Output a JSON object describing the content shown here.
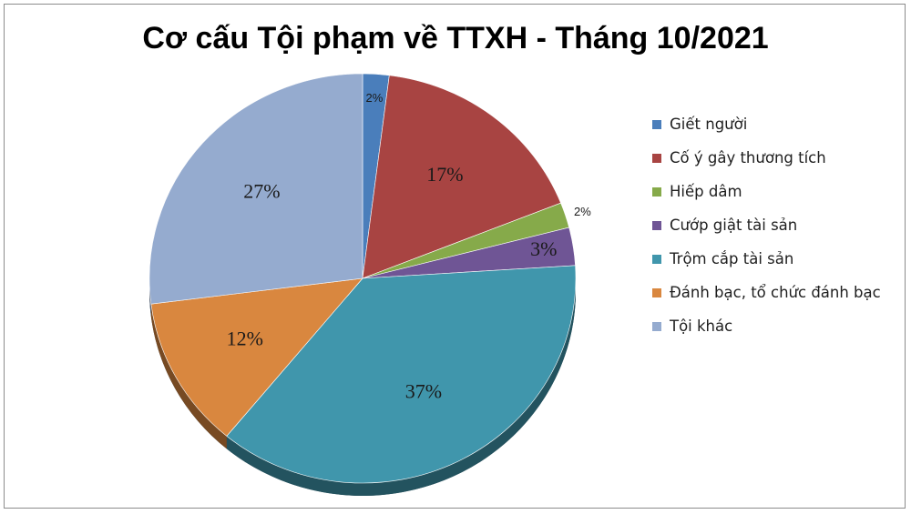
{
  "chart_data": {
    "type": "pie",
    "title": "Cơ cấu Tội phạm về TTXH - Tháng 10/2021",
    "legend_position": "right",
    "slices": [
      {
        "name": "Giết người",
        "value": 2,
        "label": "2%",
        "color": "#4a7ebb"
      },
      {
        "name": "Cố ý gây thương tích",
        "value": 17,
        "label": "17%",
        "color": "#a84442"
      },
      {
        "name": "Hiếp dâm",
        "value": 2,
        "label": "2%",
        "color": "#86aa4a"
      },
      {
        "name": "Cướp giật tài sản",
        "value": 3,
        "label": "3%",
        "color": "#6f5595"
      },
      {
        "name": "Trộm cắp tài sản",
        "value": 37,
        "label": "37%",
        "color": "#4096ac"
      },
      {
        "name": "Đánh bạc, tổ chức đánh bạc",
        "value": 12,
        "label": "12%",
        "color": "#d9873f"
      },
      {
        "name": "Tội khác",
        "value": 27,
        "label": "27%",
        "color": "#95abcf"
      }
    ]
  }
}
